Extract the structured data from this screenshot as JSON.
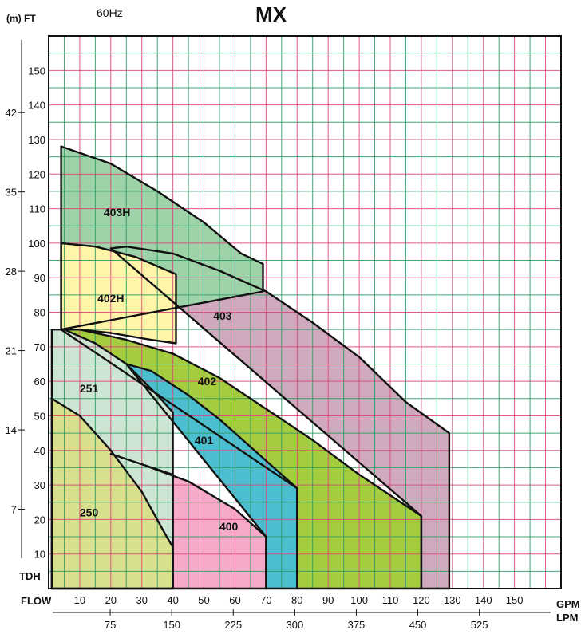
{
  "header": {
    "units_label": "(m)  FT",
    "frequency": "60Hz",
    "title": "MX"
  },
  "axes": {
    "left_label": "TDH",
    "bottom_label": "FLOW",
    "gpm_unit": "GPM",
    "lpm_unit": "LPM"
  },
  "chart_data": {
    "type": "area",
    "title": "MX",
    "subtitle": "60Hz",
    "x": {
      "unit": "GPM",
      "range": [
        0,
        165
      ],
      "ticks": [
        10,
        20,
        30,
        40,
        50,
        60,
        70,
        80,
        90,
        100,
        110,
        120,
        130,
        140,
        150
      ],
      "grid_minor_step": 5
    },
    "x_secondary": {
      "unit": "LPM",
      "ticks": [
        75,
        150,
        225,
        300,
        375,
        450,
        525
      ]
    },
    "y": {
      "unit": "FT",
      "range": [
        0,
        160
      ],
      "ticks": [
        10,
        20,
        30,
        40,
        50,
        60,
        70,
        80,
        90,
        100,
        110,
        120,
        130,
        140,
        150
      ],
      "grid_minor_step": 5
    },
    "y_secondary": {
      "unit": "m",
      "ticks": [
        7,
        14,
        21,
        28,
        35,
        42
      ]
    },
    "grid": true,
    "series": [
      {
        "name": "403",
        "color": "#cfa9bd",
        "outline": [
          [
            20,
            98.5
          ],
          [
            25,
            99
          ],
          [
            40,
            97
          ],
          [
            55,
            92
          ],
          [
            70,
            86
          ],
          [
            85,
            77
          ],
          [
            100,
            67
          ],
          [
            115,
            54
          ],
          [
            129,
            45
          ],
          [
            129,
            0
          ],
          [
            120,
            0
          ],
          [
            120,
            21
          ]
        ]
      },
      {
        "name": "402",
        "color": "#a4cc3f",
        "outline": [
          [
            4,
            75
          ],
          [
            10,
            75
          ],
          [
            25,
            72
          ],
          [
            40,
            68
          ],
          [
            55,
            61
          ],
          [
            70,
            52
          ],
          [
            85,
            43
          ],
          [
            100,
            33
          ],
          [
            120,
            21
          ],
          [
            120,
            0
          ],
          [
            80,
            0
          ],
          [
            80,
            29
          ]
        ]
      },
      {
        "name": "401",
        "color": "#4bbfd0",
        "outline": [
          [
            25,
            65
          ],
          [
            33,
            63
          ],
          [
            45,
            56
          ],
          [
            55,
            49
          ],
          [
            65,
            41
          ],
          [
            80,
            29
          ],
          [
            80,
            0
          ],
          [
            70,
            0
          ],
          [
            70,
            15
          ]
        ]
      },
      {
        "name": "403H",
        "color": "#9ed2a8",
        "outline": [
          [
            4,
            75
          ],
          [
            4,
            128
          ],
          [
            20,
            123
          ],
          [
            35,
            115
          ],
          [
            50,
            106
          ],
          [
            62,
            97
          ],
          [
            69,
            94
          ],
          [
            69,
            86
          ]
        ]
      },
      {
        "name": "402H",
        "color": "#fef5a8",
        "outline": [
          [
            4,
            75
          ],
          [
            4,
            100
          ],
          [
            15,
            99
          ],
          [
            28,
            96
          ],
          [
            41,
            91
          ],
          [
            41,
            71
          ],
          [
            33,
            72
          ],
          [
            20,
            74
          ],
          [
            10,
            75
          ]
        ]
      },
      {
        "name": "400",
        "color": "#f6a9c8",
        "outline": [
          [
            20,
            39
          ],
          [
            30,
            36
          ],
          [
            45,
            31
          ],
          [
            60,
            23
          ],
          [
            70,
            15
          ],
          [
            70,
            0
          ],
          [
            40,
            0
          ],
          [
            40,
            33
          ]
        ]
      },
      {
        "name": "251",
        "color": "#cde6d3",
        "outline": [
          [
            1,
            75
          ],
          [
            5,
            75
          ],
          [
            15,
            71
          ],
          [
            25,
            65
          ],
          [
            35,
            56
          ],
          [
            40,
            51
          ],
          [
            40,
            0
          ],
          [
            1,
            0
          ]
        ]
      },
      {
        "name": "250",
        "color": "#d9e08d",
        "outline": [
          [
            1,
            55
          ],
          [
            10,
            50
          ],
          [
            20,
            40
          ],
          [
            30,
            28
          ],
          [
            38,
            15
          ],
          [
            40,
            12
          ],
          [
            40,
            0
          ],
          [
            1,
            0
          ]
        ]
      }
    ],
    "area_labels": [
      {
        "name": "403H",
        "x": 22,
        "y": 109
      },
      {
        "name": "402H",
        "x": 20,
        "y": 84
      },
      {
        "name": "403",
        "x": 56,
        "y": 79
      },
      {
        "name": "402",
        "x": 51,
        "y": 60
      },
      {
        "name": "401",
        "x": 50,
        "y": 43
      },
      {
        "name": "251",
        "x": 13,
        "y": 58
      },
      {
        "name": "250",
        "x": 13,
        "y": 22
      },
      {
        "name": "400",
        "x": 58,
        "y": 18
      }
    ]
  }
}
